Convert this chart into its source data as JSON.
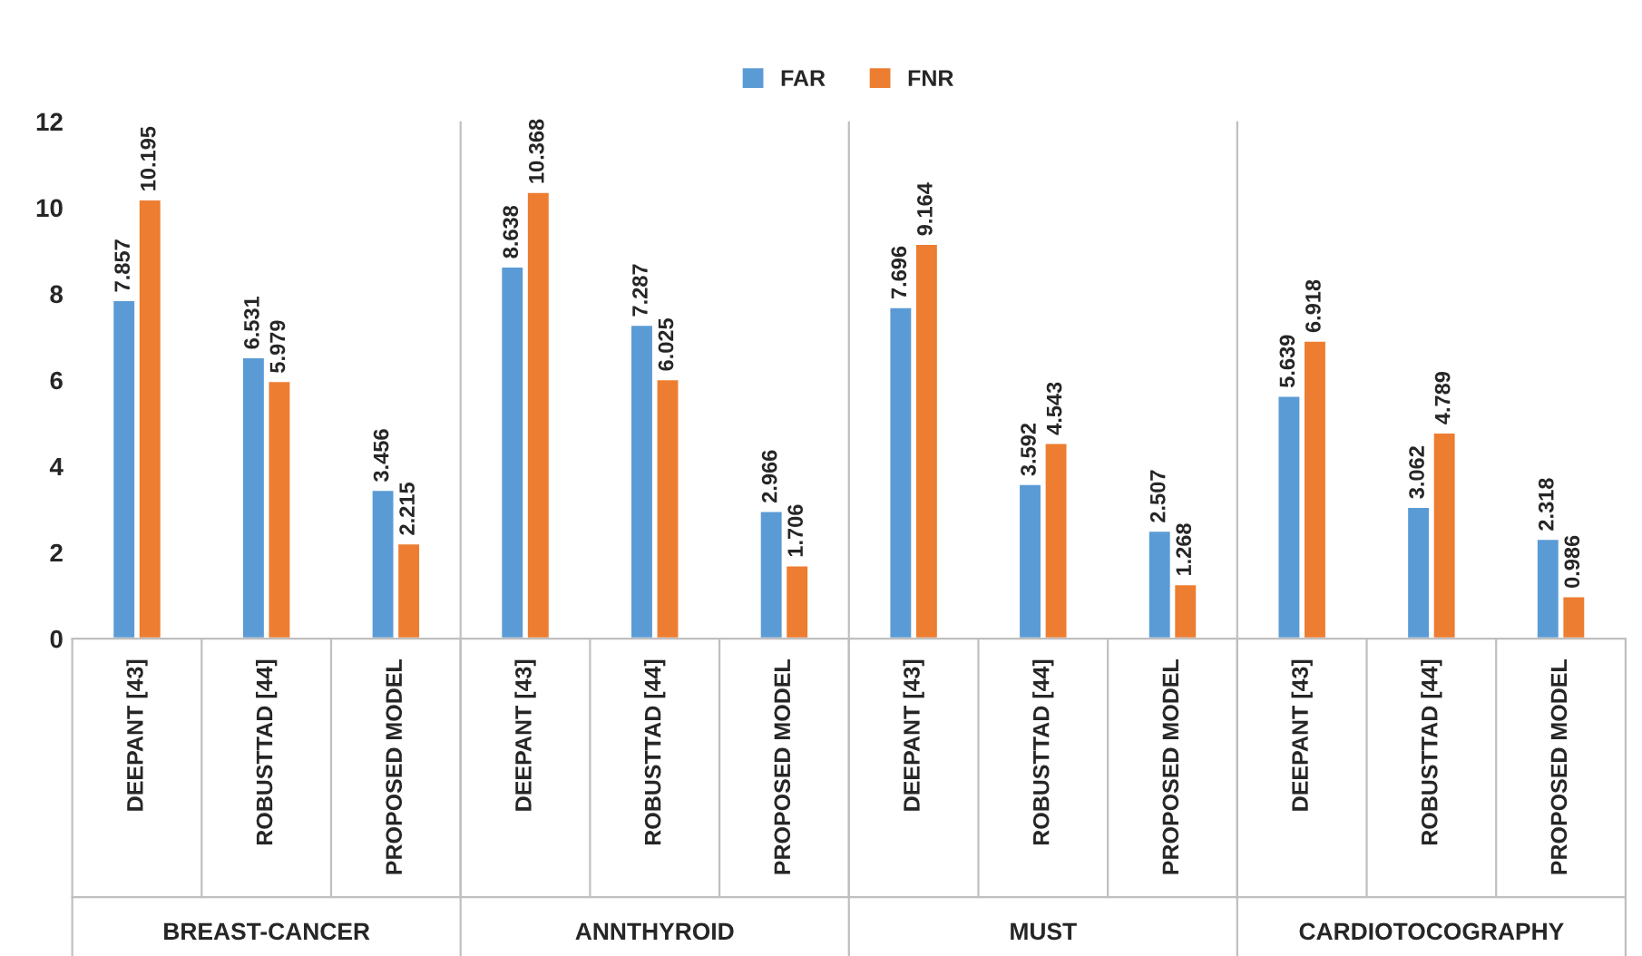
{
  "chart_data": {
    "type": "bar",
    "categories": [
      "DEEPANT [43]",
      "ROBUSTTAD [44]",
      "PROPOSED MODEL",
      "DEEPANT [43]",
      "ROBUSTTAD [44]",
      "PROPOSED MODEL",
      "DEEPANT [43]",
      "ROBUSTTAD [44]",
      "PROPOSED MODEL",
      "DEEPANT [43]",
      "ROBUSTTAD [44]",
      "PROPOSED MODEL"
    ],
    "series": [
      {
        "name": "FAR",
        "color": "#5b9bd5",
        "values": [
          7.857,
          6.531,
          3.456,
          8.638,
          7.287,
          2.966,
          7.696,
          3.592,
          2.507,
          5.639,
          3.062,
          2.318
        ]
      },
      {
        "name": "FNR",
        "color": "#ed7d31",
        "values": [
          10.195,
          5.979,
          2.215,
          10.368,
          6.025,
          1.706,
          9.164,
          4.543,
          1.268,
          6.918,
          4.789,
          0.986
        ]
      }
    ],
    "annotations": [
      "BREAST-CANCER",
      "ANNTHYROID",
      "MUST",
      "CARDIOTOCOGRAPHY"
    ],
    "ylim": [
      0,
      12
    ],
    "yticks": [
      0,
      2,
      4,
      6,
      8,
      10,
      12
    ],
    "data_labels": true,
    "legend": "top",
    "grid": false
  }
}
